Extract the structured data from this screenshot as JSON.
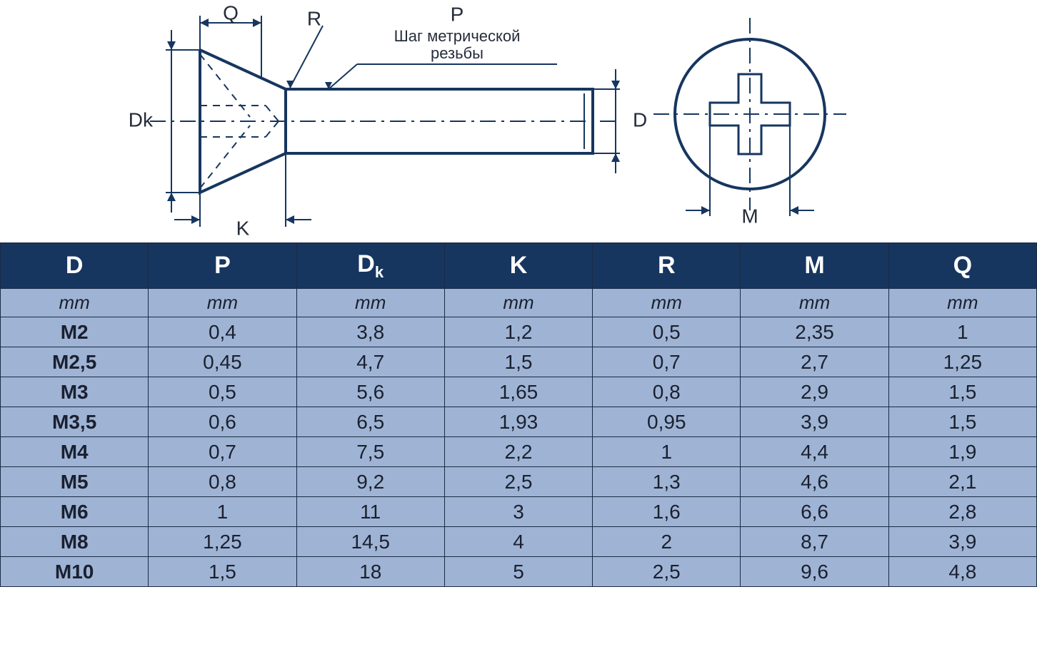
{
  "diagram": {
    "stroke_color": "#16365f",
    "text_color": "#262c3a",
    "label_fontsize": 28,
    "annotation_text_line1": "Шаг метрической",
    "annotation_text_line2": "резьбы",
    "labels": {
      "Q": "Q",
      "R": "R",
      "P": "P",
      "Dk": "Dk",
      "D": "D",
      "K": "K",
      "M": "M"
    }
  },
  "table": {
    "header_bg": "#16365f",
    "header_fg": "#ffffff",
    "body_bg": "#9fb4d4",
    "body_fg": "#1a2030",
    "border_color": "#1a2a44",
    "columns": [
      "D",
      "P",
      "Dk",
      "K",
      "R",
      "M",
      "Q"
    ],
    "dk_sub": "k",
    "units_label": "mm",
    "units": [
      "mm",
      "mm",
      "mm",
      "mm",
      "mm",
      "mm",
      "mm"
    ],
    "rows": [
      [
        "M2",
        "0,4",
        "3,8",
        "1,2",
        "0,5",
        "2,35",
        "1"
      ],
      [
        "M2,5",
        "0,45",
        "4,7",
        "1,5",
        "0,7",
        "2,7",
        "1,25"
      ],
      [
        "M3",
        "0,5",
        "5,6",
        "1,65",
        "0,8",
        "2,9",
        "1,5"
      ],
      [
        "M3,5",
        "0,6",
        "6,5",
        "1,93",
        "0,95",
        "3,9",
        "1,5"
      ],
      [
        "M4",
        "0,7",
        "7,5",
        "2,2",
        "1",
        "4,4",
        "1,9"
      ],
      [
        "M5",
        "0,8",
        "9,2",
        "2,5",
        "1,3",
        "4,6",
        "2,1"
      ],
      [
        "M6",
        "1",
        "11",
        "3",
        "1,6",
        "6,6",
        "2,8"
      ],
      [
        "M8",
        "1,25",
        "14,5",
        "4",
        "2",
        "8,7",
        "3,9"
      ],
      [
        "M10",
        "1,5",
        "18",
        "5",
        "2,5",
        "9,6",
        "4,8"
      ]
    ]
  }
}
